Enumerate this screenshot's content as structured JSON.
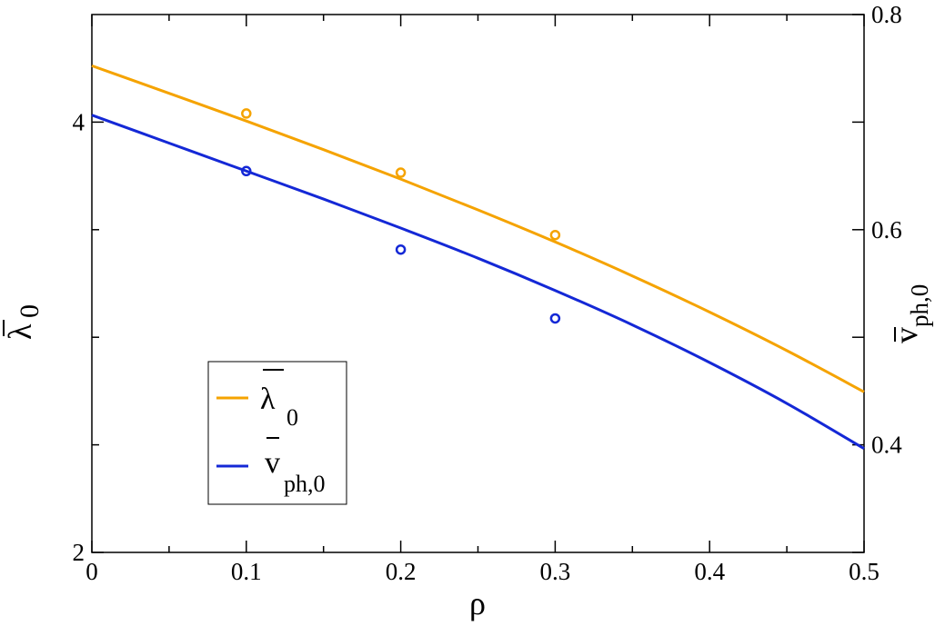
{
  "chart_data": {
    "type": "line",
    "x": [
      0,
      0.05,
      0.1,
      0.15,
      0.2,
      0.25,
      0.3,
      0.35,
      0.4,
      0.45,
      0.5
    ],
    "xlim": [
      0,
      0.5
    ],
    "xticks": [
      0,
      0.1,
      0.2,
      0.3,
      0.4,
      0.5
    ],
    "xtick_labels": [
      "0",
      "0.1",
      "0.2",
      "0.3",
      "0.4",
      "0.5"
    ],
    "xlabel": "ρ",
    "left_axis": {
      "label": "λ",
      "label_sub": "0",
      "ylim": [
        2,
        4.5
      ],
      "ticks": [
        2,
        2.5,
        3,
        3.5,
        4
      ],
      "tick_labels": [
        "2",
        "",
        "",
        "",
        "4"
      ]
    },
    "right_axis": {
      "label": "v",
      "label_sub": "ph,0",
      "ylim": [
        0.3,
        0.8
      ],
      "ticks": [
        0.3,
        0.4,
        0.5,
        0.6,
        0.7,
        0.8
      ],
      "tick_labels": [
        "",
        "0.4",
        "",
        "0.6",
        "",
        "0.8"
      ]
    },
    "series": [
      {
        "name": "λ",
        "name_sub": "0",
        "axis": "left",
        "color": "#F5A300",
        "line": [
          4.262,
          4.134,
          4.005,
          3.872,
          3.735,
          3.592,
          3.443,
          3.285,
          3.117,
          2.938,
          2.746
        ],
        "points": [
          [
            0.1,
            4.04
          ],
          [
            0.2,
            3.765
          ],
          [
            0.3,
            3.475
          ]
        ]
      },
      {
        "name": "v",
        "name_sub": "ph,0",
        "axis": "right",
        "color": "#1428D6",
        "line": [
          0.7065,
          0.6805,
          0.6545,
          0.6285,
          0.6015,
          0.5735,
          0.5435,
          0.5115,
          0.4765,
          0.4385,
          0.3965
        ],
        "points": [
          [
            0.1,
            0.6545
          ],
          [
            0.2,
            0.5815
          ],
          [
            0.3,
            0.5175
          ]
        ]
      }
    ],
    "legend_position": "lower-left",
    "grid": false
  }
}
